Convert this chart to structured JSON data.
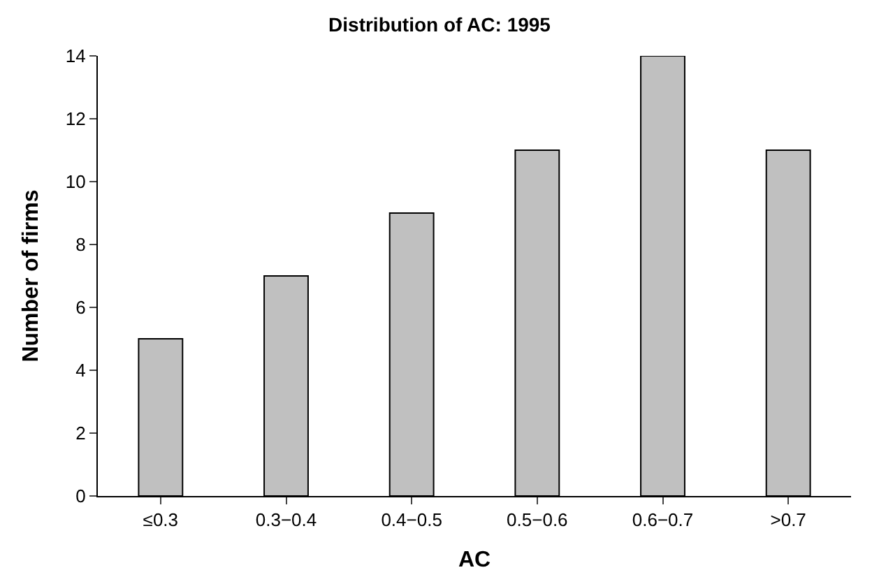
{
  "chart_data": {
    "type": "bar",
    "title": "Distribution of AC: 1995",
    "xlabel": "AC",
    "ylabel": "Number of firms",
    "categories": [
      "≤0.3",
      "0.3−0.4",
      "0.4−0.5",
      "0.5−0.6",
      "0.6−0.7",
      ">0.7"
    ],
    "values": [
      5,
      7,
      9,
      11,
      14,
      11
    ],
    "color": "#c0c0c0",
    "ylim": [
      0,
      14
    ],
    "yticks": [
      0,
      2,
      4,
      6,
      8,
      10,
      12,
      14
    ],
    "legend": false
  }
}
